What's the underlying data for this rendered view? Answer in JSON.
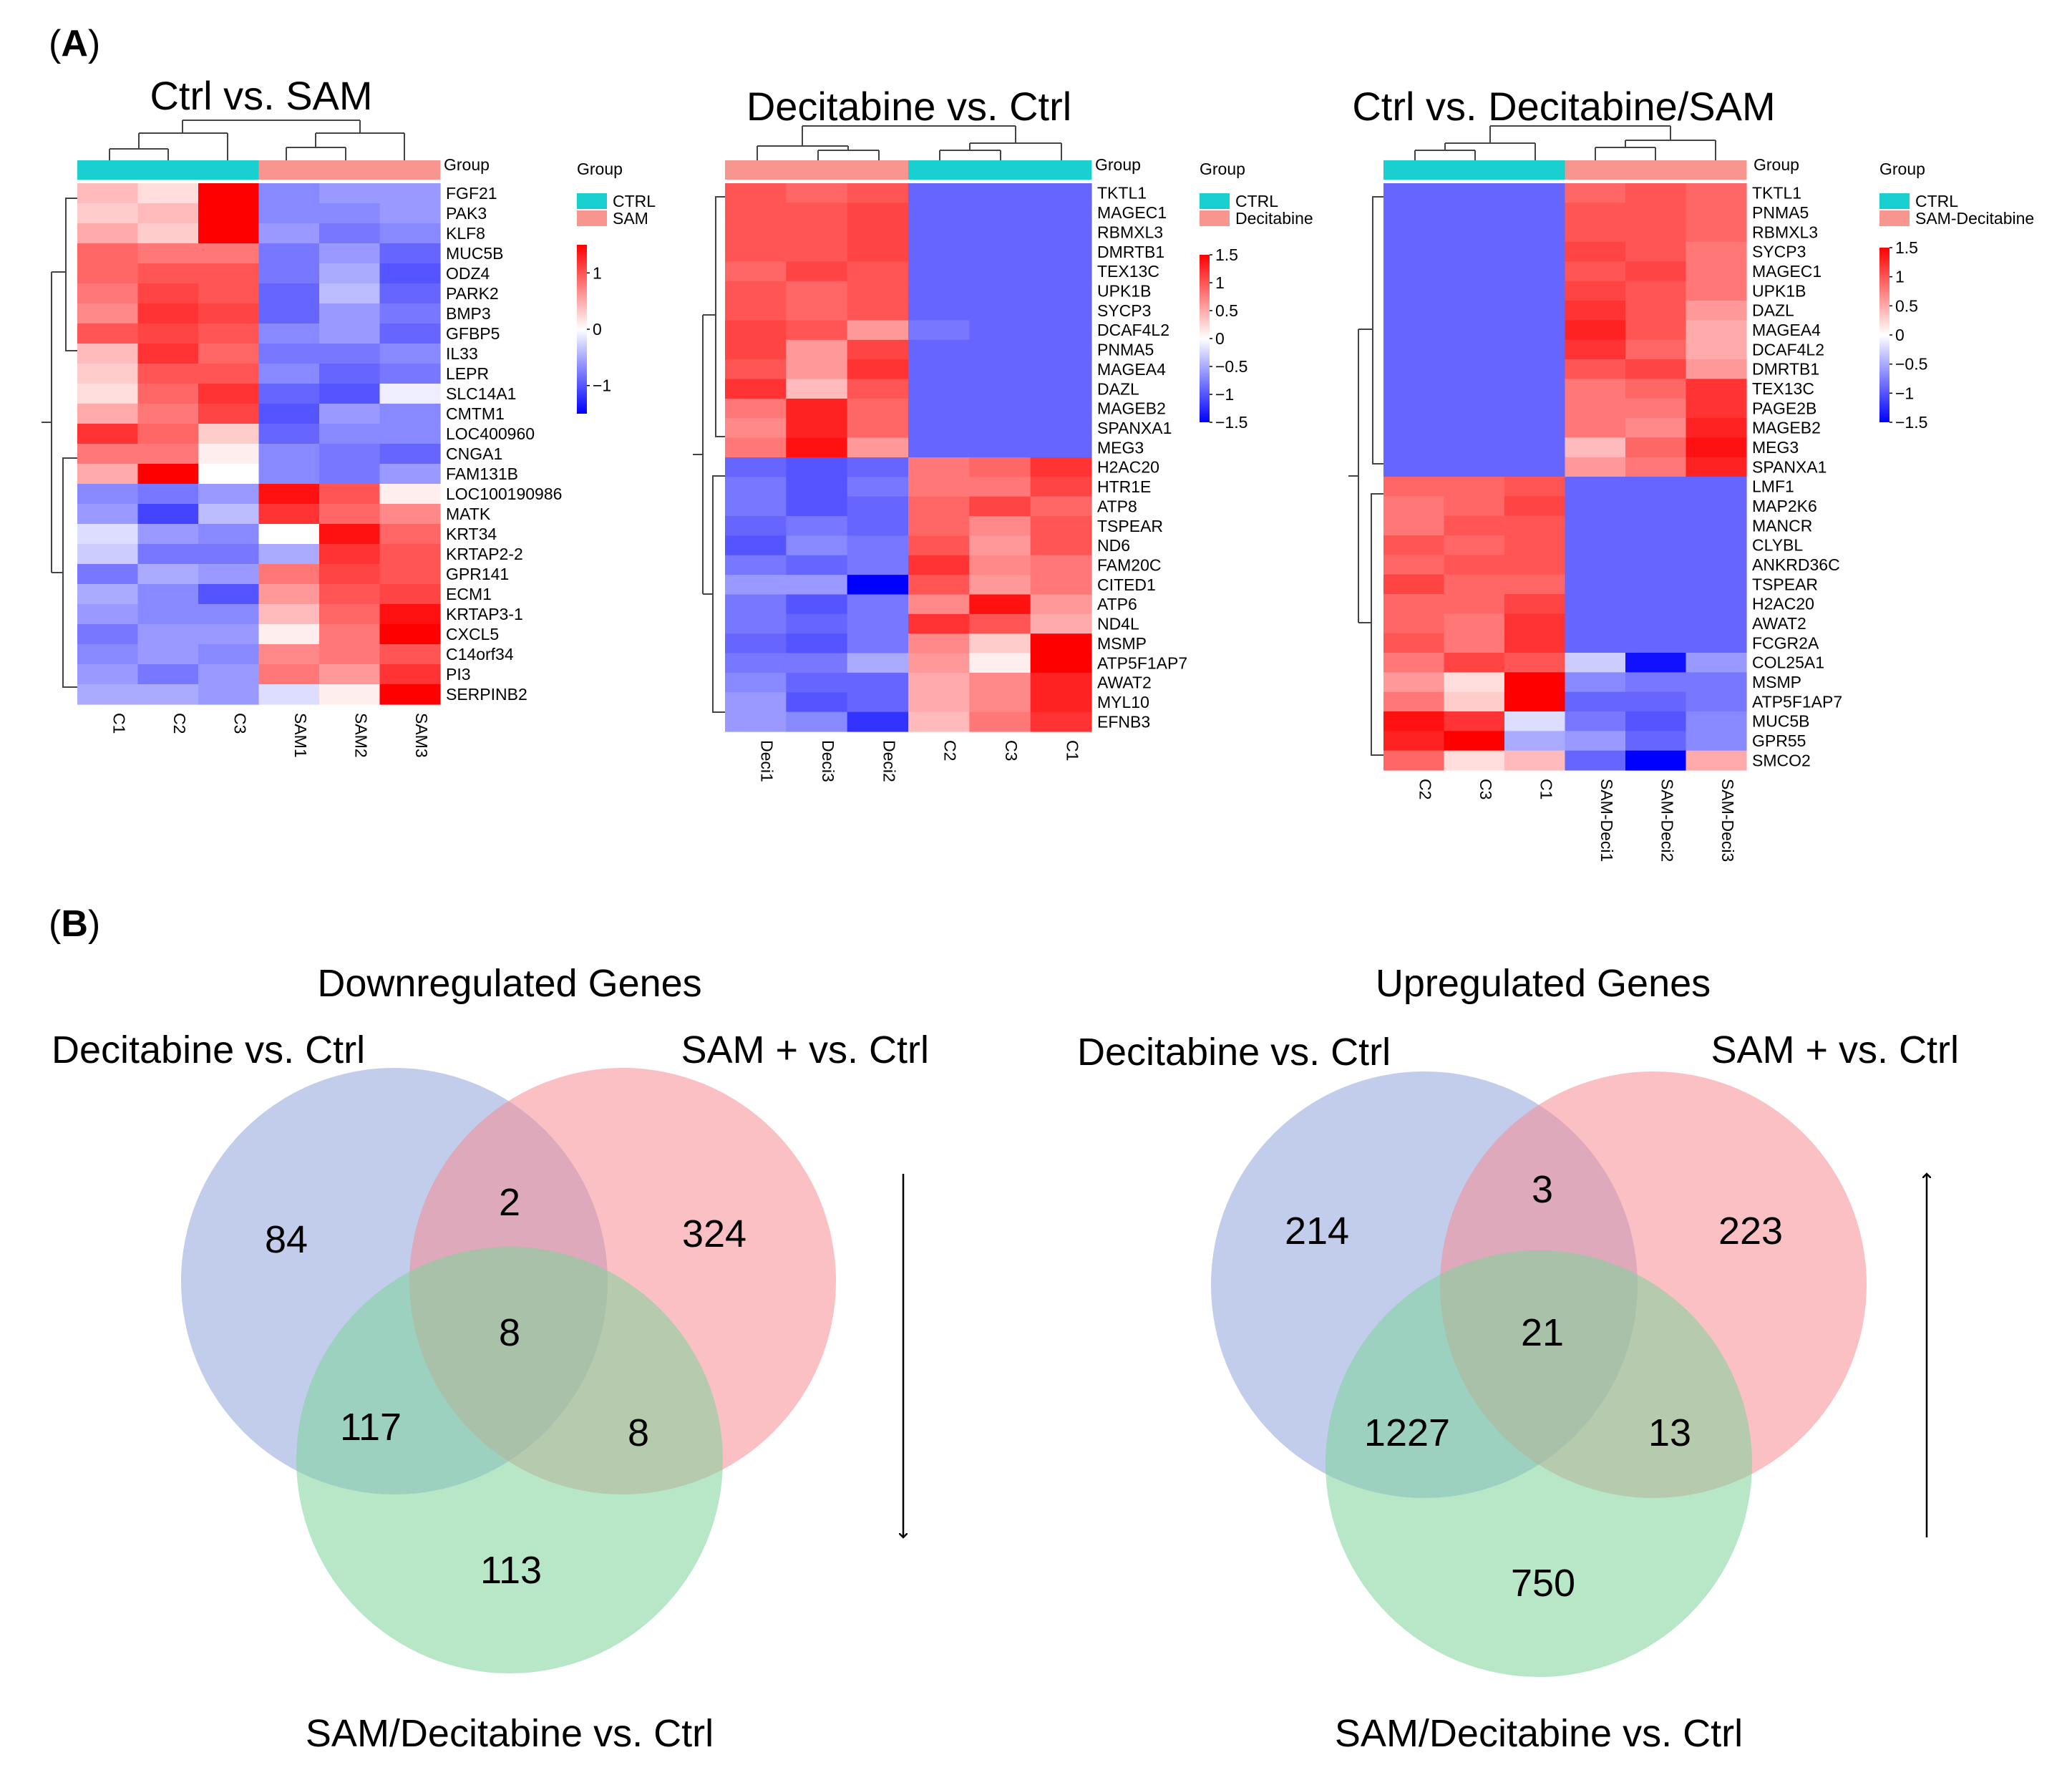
{
  "panel_labels": {
    "a_open": "(",
    "a": "A",
    "a_close": ")",
    "b_open": "(",
    "b": "B",
    "b_close": ")"
  },
  "colors": {
    "ctrl": "#19CFD0",
    "treat": "#F7968F",
    "high": "#FF0000",
    "mid": "#FFFFFF",
    "low": "#0000FF",
    "venn_blue": "#8FA2DA",
    "venn_red": "#F58D93",
    "venn_green": "#7DD39A"
  },
  "chart_data": [
    {
      "type": "heatmap",
      "title": "Ctrl vs. SAM",
      "annotation_label": "Group",
      "legend": {
        "title": "Group",
        "items": [
          {
            "name": "CTRL",
            "color": "#19CFD0"
          },
          {
            "name": "SAM",
            "color": "#F7968F"
          }
        ]
      },
      "scale": {
        "min": -1.5,
        "max": 1.5,
        "ticks": [
          1,
          0,
          -1
        ],
        "tick_labels": [
          "1",
          "0",
          "−1"
        ]
      },
      "columns": [
        "C1",
        "C2",
        "C3",
        "SAM1",
        "SAM2",
        "SAM3"
      ],
      "column_groups": [
        "CTRL",
        "CTRL",
        "CTRL",
        "SAM",
        "SAM",
        "SAM"
      ],
      "rows": [
        "FGF21",
        "PAK3",
        "KLF8",
        "MUC5B",
        "ODZ4",
        "PARK2",
        "BMP3",
        "GFBP5",
        "IL33",
        "LEPR",
        "SLC14A1",
        "CMTM1",
        "LOC400960",
        "CNGA1",
        "FAM131B",
        "LOC100190986",
        "MATK",
        "KRT34",
        "KRTAP2-2",
        "GPR141",
        "ECM1",
        "KRTAP3-1",
        "CXCL5",
        "C14orf34",
        "PI3",
        "SERPINB2"
      ],
      "values": [
        [
          0.4,
          0.2,
          1.8,
          -0.7,
          -0.6,
          -0.6
        ],
        [
          0.3,
          0.4,
          1.7,
          -0.7,
          -0.7,
          -0.6
        ],
        [
          0.5,
          0.3,
          1.6,
          -0.6,
          -0.8,
          -0.7
        ],
        [
          0.9,
          0.8,
          0.8,
          -0.8,
          -0.6,
          -0.9
        ],
        [
          0.9,
          1.0,
          1.0,
          -0.8,
          -0.5,
          -1.0
        ],
        [
          0.8,
          1.1,
          1.0,
          -0.9,
          -0.4,
          -0.9
        ],
        [
          0.7,
          1.2,
          1.1,
          -0.9,
          -0.6,
          -0.8
        ],
        [
          1.0,
          1.1,
          1.0,
          -0.7,
          -0.6,
          -0.9
        ],
        [
          0.4,
          1.2,
          0.9,
          -0.8,
          -0.8,
          -0.7
        ],
        [
          0.3,
          1.0,
          1.0,
          -0.7,
          -0.9,
          -0.8
        ],
        [
          0.2,
          0.9,
          1.2,
          -0.9,
          -1.0,
          -0.1
        ],
        [
          0.5,
          0.8,
          1.1,
          -1.0,
          -0.6,
          -0.7
        ],
        [
          1.2,
          0.9,
          0.3,
          -0.9,
          -0.7,
          -0.7
        ],
        [
          0.8,
          0.8,
          0.1,
          -0.7,
          -0.8,
          -0.9
        ],
        [
          0.5,
          1.5,
          0.0,
          -0.7,
          -0.8,
          -0.6
        ],
        [
          -0.7,
          -0.8,
          -0.6,
          1.4,
          1.0,
          0.1
        ],
        [
          -0.6,
          -1.1,
          -0.4,
          1.2,
          0.9,
          0.7
        ],
        [
          -0.2,
          -0.6,
          -0.7,
          0.0,
          1.4,
          0.9
        ],
        [
          -0.3,
          -0.8,
          -0.8,
          -0.5,
          1.2,
          1.0
        ],
        [
          -0.8,
          -0.5,
          -0.6,
          0.8,
          1.1,
          1.0
        ],
        [
          -0.5,
          -0.7,
          -1.0,
          0.6,
          1.0,
          1.1
        ],
        [
          -0.6,
          -0.7,
          -0.7,
          0.4,
          0.9,
          1.4
        ],
        [
          -0.8,
          -0.6,
          -0.6,
          0.1,
          0.8,
          1.5
        ],
        [
          -0.7,
          -0.6,
          -0.7,
          0.7,
          0.8,
          1.0
        ],
        [
          -0.6,
          -0.8,
          -0.6,
          0.8,
          0.6,
          1.2
        ],
        [
          -0.5,
          -0.5,
          -0.6,
          -0.2,
          0.1,
          1.9
        ]
      ]
    },
    {
      "type": "heatmap",
      "title": "Decitabine vs. Ctrl",
      "annotation_label": "Group",
      "legend": {
        "title": "Group",
        "items": [
          {
            "name": "CTRL",
            "color": "#19CFD0"
          },
          {
            "name": "Decitabine",
            "color": "#F7968F"
          }
        ]
      },
      "scale": {
        "min": -1.5,
        "max": 1.5,
        "ticks": [
          1.5,
          1,
          0.5,
          0,
          -0.5,
          -1,
          -1.5
        ],
        "tick_labels": [
          "1.5",
          "1",
          "0.5",
          "0",
          "−0.5",
          "−1",
          "−1.5"
        ]
      },
      "columns": [
        "Deci1",
        "Deci3",
        "Deci2",
        "C2",
        "C3",
        "C1"
      ],
      "column_groups": [
        "Decitabine",
        "Decitabine",
        "Decitabine",
        "CTRL",
        "CTRL",
        "CTRL"
      ],
      "rows": [
        "TKTL1",
        "MAGEC1",
        "RBMXL3",
        "DMRTB1",
        "TEX13C",
        "UPK1B",
        "SYCP3",
        "DCAF4L2",
        "PNMA5",
        "MAGEA4",
        "DAZL",
        "MAGEB2",
        "SPANXA1",
        "MEG3",
        "H2AC20",
        "HTR1E",
        "ATP8",
        "TSPEAR",
        "ND6",
        "FAM20C",
        "CITED1",
        "ATP6",
        "ND4L",
        "MSMP",
        "ATP5F1AP7",
        "AWAT2",
        "MYL10",
        "EFNB3"
      ],
      "values": [
        [
          1.0,
          0.9,
          1.0,
          -0.9,
          -0.9,
          -0.9
        ],
        [
          1.0,
          1.0,
          1.1,
          -0.9,
          -0.9,
          -0.9
        ],
        [
          1.0,
          1.0,
          1.1,
          -0.9,
          -0.9,
          -0.9
        ],
        [
          1.0,
          1.0,
          1.1,
          -0.9,
          -0.9,
          -0.9
        ],
        [
          0.9,
          1.1,
          1.0,
          -0.9,
          -0.9,
          -0.9
        ],
        [
          1.0,
          0.9,
          1.0,
          -0.9,
          -0.9,
          -0.9
        ],
        [
          1.0,
          0.9,
          1.0,
          -0.9,
          -0.9,
          -0.9
        ],
        [
          1.1,
          1.0,
          0.6,
          -0.8,
          -0.9,
          -0.9
        ],
        [
          1.1,
          0.6,
          1.1,
          -0.9,
          -0.9,
          -0.9
        ],
        [
          1.0,
          0.6,
          1.2,
          -0.9,
          -0.9,
          -0.9
        ],
        [
          1.2,
          0.4,
          1.0,
          -0.9,
          -0.9,
          -0.9
        ],
        [
          0.8,
          1.3,
          0.9,
          -0.9,
          -0.9,
          -0.9
        ],
        [
          0.7,
          1.3,
          0.9,
          -0.9,
          -0.9,
          -0.9
        ],
        [
          0.8,
          1.4,
          0.6,
          -0.9,
          -0.9,
          -0.9
        ],
        [
          -0.9,
          -1.0,
          -0.9,
          0.8,
          0.9,
          1.2
        ],
        [
          -0.8,
          -1.0,
          -0.8,
          0.8,
          0.8,
          1.1
        ],
        [
          -0.8,
          -1.0,
          -0.9,
          0.9,
          1.1,
          0.9
        ],
        [
          -0.9,
          -0.8,
          -0.9,
          0.9,
          0.7,
          1.0
        ],
        [
          -1.0,
          -0.7,
          -0.8,
          1.0,
          0.6,
          1.0
        ],
        [
          -0.8,
          -0.9,
          -0.8,
          1.2,
          0.7,
          0.8
        ],
        [
          -0.6,
          -0.6,
          -1.7,
          1.0,
          0.6,
          0.8
        ],
        [
          -0.8,
          -1.0,
          -0.8,
          0.7,
          1.4,
          0.6
        ],
        [
          -0.8,
          -0.9,
          -0.8,
          1.2,
          1.0,
          0.5
        ],
        [
          -0.9,
          -1.0,
          -0.8,
          0.7,
          0.3,
          1.6
        ],
        [
          -0.8,
          -0.8,
          -0.5,
          0.6,
          0.1,
          1.8
        ],
        [
          -0.7,
          -0.9,
          -0.9,
          0.5,
          0.7,
          1.3
        ],
        [
          -0.6,
          -1.0,
          -0.9,
          0.5,
          0.7,
          1.3
        ],
        [
          -0.6,
          -0.7,
          -1.2,
          0.4,
          0.8,
          1.2
        ]
      ]
    },
    {
      "type": "heatmap",
      "title": "Ctrl vs. Decitabine/SAM",
      "annotation_label": "Group",
      "legend": {
        "title": "Group",
        "items": [
          {
            "name": "CTRL",
            "color": "#19CFD0"
          },
          {
            "name": "SAM-Decitabine",
            "color": "#F7968F"
          }
        ]
      },
      "scale": {
        "min": -1.5,
        "max": 1.5,
        "ticks": [
          1.5,
          1,
          0.5,
          0,
          -0.5,
          -1,
          -1.5
        ],
        "tick_labels": [
          "1.5",
          "1",
          "0.5",
          "0",
          "−0.5",
          "−1",
          "−1.5"
        ]
      },
      "columns": [
        "C2",
        "C3",
        "C1",
        "SAM-Deci1",
        "SAM-Deci2",
        "SAM-Deci3"
      ],
      "column_groups": [
        "CTRL",
        "CTRL",
        "CTRL",
        "SAM-Decitabine",
        "SAM-Decitabine",
        "SAM-Decitabine"
      ],
      "rows": [
        "TKTL1",
        "PNMA5",
        "RBMXL3",
        "SYCP3",
        "MAGEC1",
        "UPK1B",
        "DAZL",
        "MAGEA4",
        "DCAF4L2",
        "DMRTB1",
        "TEX13C",
        "PAGE2B",
        "MAGEB2",
        "MEG3",
        "SPANXA1",
        "LMF1",
        "MAP2K6",
        "MANCR",
        "CLYBL",
        "ANKRD36C",
        "TSPEAR",
        "H2AC20",
        "AWAT2",
        "FCGR2A",
        "COL25A1",
        "MSMP",
        "ATP5F1AP7",
        "MUC5B",
        "GPR55",
        "SMCO2"
      ],
      "values": [
        [
          -0.9,
          -0.9,
          -0.9,
          0.9,
          1.0,
          0.9
        ],
        [
          -0.9,
          -0.9,
          -0.9,
          1.0,
          1.0,
          0.9
        ],
        [
          -0.9,
          -0.9,
          -0.9,
          1.0,
          1.0,
          0.9
        ],
        [
          -0.9,
          -0.9,
          -0.9,
          1.1,
          1.0,
          0.8
        ],
        [
          -0.9,
          -0.9,
          -0.9,
          1.0,
          1.1,
          0.8
        ],
        [
          -0.9,
          -0.9,
          -0.9,
          1.1,
          1.0,
          0.8
        ],
        [
          -0.9,
          -0.9,
          -0.9,
          1.2,
          1.0,
          0.6
        ],
        [
          -0.9,
          -0.9,
          -0.9,
          1.3,
          1.0,
          0.5
        ],
        [
          -0.9,
          -0.9,
          -0.9,
          1.2,
          0.9,
          0.5
        ],
        [
          -0.9,
          -0.9,
          -0.9,
          1.0,
          1.1,
          0.6
        ],
        [
          -0.9,
          -0.9,
          -0.9,
          0.8,
          0.9,
          1.2
        ],
        [
          -0.9,
          -0.9,
          -0.9,
          0.8,
          0.8,
          1.2
        ],
        [
          -0.9,
          -0.9,
          -0.9,
          0.8,
          0.7,
          1.3
        ],
        [
          -0.9,
          -0.9,
          -0.9,
          0.4,
          0.9,
          1.4
        ],
        [
          -0.9,
          -0.9,
          -0.9,
          0.6,
          0.8,
          1.3
        ],
        [
          0.9,
          0.9,
          1.0,
          -0.9,
          -0.9,
          -0.9
        ],
        [
          0.8,
          0.9,
          1.1,
          -0.9,
          -0.9,
          -0.9
        ],
        [
          0.8,
          1.0,
          1.0,
          -0.9,
          -0.9,
          -0.9
        ],
        [
          1.0,
          0.9,
          1.0,
          -0.9,
          -0.9,
          -0.9
        ],
        [
          0.9,
          1.0,
          1.0,
          -0.9,
          -0.9,
          -0.9
        ],
        [
          1.1,
          0.9,
          0.9,
          -0.9,
          -0.9,
          -0.9
        ],
        [
          0.9,
          0.9,
          1.1,
          -0.9,
          -0.9,
          -0.9
        ],
        [
          0.9,
          0.8,
          1.2,
          -0.9,
          -0.9,
          -0.9
        ],
        [
          1.0,
          0.8,
          1.2,
          -0.9,
          -0.9,
          -0.9
        ],
        [
          0.8,
          1.1,
          1.0,
          -0.3,
          -1.4,
          -0.6
        ],
        [
          0.6,
          0.2,
          1.6,
          -0.7,
          -0.8,
          -0.8
        ],
        [
          0.8,
          0.3,
          1.8,
          -0.9,
          -0.9,
          -0.8
        ],
        [
          1.4,
          1.2,
          -0.2,
          -0.8,
          -1.0,
          -0.7
        ],
        [
          1.3,
          1.5,
          -0.5,
          -0.6,
          -0.9,
          -0.7
        ],
        [
          0.9,
          0.2,
          0.4,
          -0.9,
          -2.0,
          0.5
        ]
      ]
    },
    {
      "type": "venn",
      "title": "Downregulated Genes",
      "sets": [
        "Decitabine vs. Ctrl",
        "SAM + vs. Ctrl",
        "SAM/Decitabine vs. Ctrl"
      ],
      "regions": {
        "decitabine_only": 84,
        "sam_only": 324,
        "samdeci_only": 113,
        "decitabine_sam": 2,
        "decitabine_samdeci": 117,
        "sam_samdeci": 8,
        "all": 8
      },
      "direction": "down"
    },
    {
      "type": "venn",
      "title": "Upregulated Genes",
      "sets": [
        "Decitabine vs. Ctrl",
        "SAM + vs. Ctrl",
        "SAM/Decitabine vs. Ctrl"
      ],
      "regions": {
        "decitabine_only": 214,
        "sam_only": 223,
        "samdeci_only": 750,
        "decitabine_sam": 3,
        "decitabine_samdeci": 1227,
        "sam_samdeci": 13,
        "all": 21
      },
      "direction": "up"
    }
  ]
}
